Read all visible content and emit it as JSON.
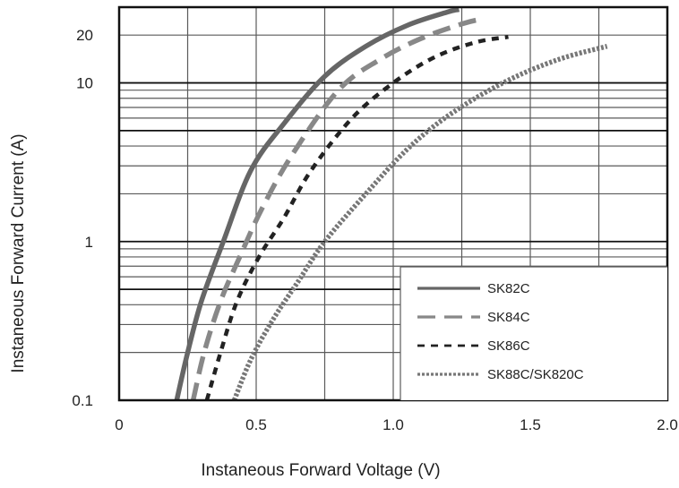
{
  "chart_data": {
    "type": "line",
    "title": "",
    "xlabel": "Instaneous Forward Voltage (V)",
    "ylabel": "Instaneous Forward Current  (A)",
    "xlim": [
      0,
      2.0
    ],
    "ylim": [
      0.1,
      30
    ],
    "y_scale": "log",
    "grid": true,
    "legend_position": "lower-right",
    "x_ticks": [
      "0",
      "0.5",
      "1.0",
      "1.5",
      "2.0"
    ],
    "x_tick_values": [
      0,
      0.5,
      1.0,
      1.5,
      2.0
    ],
    "y_ticks": [
      "0.1",
      "1",
      "10",
      "20"
    ],
    "y_tick_values": [
      0.1,
      1,
      10,
      20
    ],
    "series": [
      {
        "name": "SK82C",
        "style": "solid",
        "color": "#666666",
        "x": [
          0.21,
          0.25,
          0.3,
          0.38,
          0.48,
          0.6,
          0.75,
          0.9,
          1.05,
          1.2,
          1.24
        ],
        "y": [
          0.1,
          0.2,
          0.42,
          1.0,
          2.8,
          5.5,
          11.0,
          17.0,
          23.0,
          28.0,
          29.0
        ]
      },
      {
        "name": "SK84C",
        "style": "dashed",
        "color": "#888888",
        "x": [
          0.27,
          0.31,
          0.37,
          0.44,
          0.52,
          0.63,
          0.8,
          0.95,
          1.1,
          1.25,
          1.31
        ],
        "y": [
          0.1,
          0.2,
          0.42,
          0.8,
          1.6,
          3.5,
          9.0,
          14.0,
          19.0,
          23.5,
          25.0
        ]
      },
      {
        "name": "SK86C",
        "style": "dotted",
        "color": "#222222",
        "x": [
          0.32,
          0.37,
          0.43,
          0.51,
          0.6,
          0.7,
          0.85,
          1.0,
          1.15,
          1.3,
          1.42
        ],
        "y": [
          0.1,
          0.2,
          0.42,
          0.8,
          1.4,
          2.8,
          6.0,
          10.0,
          14.5,
          18.0,
          19.5
        ]
      },
      {
        "name": "SK88C/SK820C",
        "style": "dense-dotted",
        "color": "#777777",
        "x": [
          0.42,
          0.48,
          0.56,
          0.65,
          0.75,
          0.9,
          1.05,
          1.2,
          1.4,
          1.6,
          1.78
        ],
        "y": [
          0.1,
          0.18,
          0.32,
          0.55,
          1.0,
          2.0,
          3.8,
          6.2,
          10.0,
          14.0,
          17.0
        ]
      }
    ]
  }
}
